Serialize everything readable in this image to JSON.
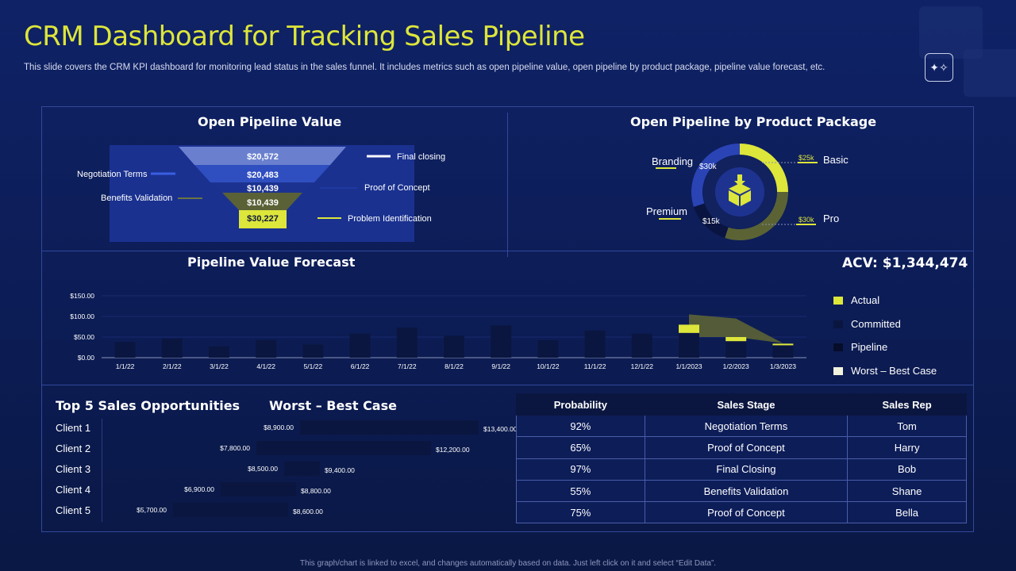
{
  "header": {
    "title": "CRM Dashboard for Tracking Sales Pipeline",
    "subtitle": "This slide covers the CRM KPI dashboard for monitoring lead status in the sales funnel. It includes metrics such as open pipeline value, open pipeline by product package, pipeline value forecast, etc.",
    "sparkle_icon": "sparkle-icon"
  },
  "footer": {
    "note": "This graph/chart is linked to excel, and changes automatically based on data. Just left click on it and select “Edit Data”."
  },
  "colors": {
    "accent": "#dde63a",
    "olive": "#5b6335",
    "navy_dark": "#0b1640",
    "blue_mid": "#2a44b5",
    "blue_light": "#6a80cf"
  },
  "chart_data": [
    {
      "type": "funnel",
      "title": "Open Pipeline Value",
      "stages": [
        {
          "value_label": "$20,572",
          "name": "Final closing"
        },
        {
          "value_label": "$20,483",
          "name": "Negotiation Terms"
        },
        {
          "value_label": "$10,439",
          "name": "Proof of Concept"
        },
        {
          "value_label": "$10,439",
          "name": "Benefits Validation"
        },
        {
          "value_label": "$30,227",
          "name": "Problem Identification"
        }
      ]
    },
    {
      "type": "pie",
      "title": "Open Pipeline by Product Package",
      "center_icon": "box-icon",
      "slices": [
        {
          "name": "Basic",
          "value": 25,
          "value_label": "$25k"
        },
        {
          "name": "Pro",
          "value": 30,
          "value_label": "$30k"
        },
        {
          "name": "Premium",
          "value": 15,
          "value_label": "$15k"
        },
        {
          "name": "Branding",
          "value": 30,
          "value_label": "$30k"
        }
      ]
    },
    {
      "type": "bar",
      "title": "Pipeline Value Forecast",
      "kpi": "ACV: $1,344,474",
      "ylim": [
        0,
        150
      ],
      "yticks": [
        "$150.00",
        "$100.00",
        "$50.00",
        "$0.00"
      ],
      "ytick_values": [
        150,
        100,
        50,
        0
      ],
      "categories": [
        "1/1/22",
        "2/1/22",
        "3/1/22",
        "4/1/22",
        "5/1/22",
        "6/1/22",
        "7/1/22",
        "8/1/22",
        "9/1/22",
        "10/1/22",
        "11/1/22",
        "12/1/22",
        "1/1/2023",
        "1/2/2023",
        "1/3/2023"
      ],
      "series": [
        {
          "name": "Actual",
          "values": [
            0,
            0,
            0,
            0,
            0,
            0,
            0,
            0,
            0,
            0,
            0,
            0,
            20,
            10,
            4
          ]
        },
        {
          "name": "Committed",
          "values": [
            38,
            46,
            28,
            43,
            32,
            58,
            73,
            53,
            78,
            42,
            66,
            58,
            60,
            40,
            30
          ]
        },
        {
          "name": "Pipeline",
          "values": [
            0,
            0,
            0,
            0,
            0,
            0,
            0,
            0,
            0,
            0,
            0,
            0,
            0,
            0,
            0
          ]
        },
        {
          "name": "Worst – Best Case",
          "values": [
            null,
            null,
            null,
            null,
            null,
            null,
            null,
            null,
            null,
            null,
            null,
            null,
            105,
            95,
            35
          ]
        }
      ],
      "worst_case_lower": [
        null,
        null,
        null,
        null,
        null,
        null,
        null,
        null,
        null,
        null,
        null,
        null,
        50,
        50,
        35
      ]
    },
    {
      "type": "bar",
      "orientation": "horizontal",
      "title": "Top 5 Sales Opportunities",
      "range_title": "Worst – Best Case",
      "categories": [
        "Client 1",
        "Client 2",
        "Client 3",
        "Client 4",
        "Client 5"
      ],
      "worst": [
        8900,
        7800,
        8500,
        6900,
        5700
      ],
      "best": [
        13400,
        12200,
        9400,
        8800,
        8600
      ],
      "worst_labels": [
        "$8,900.00",
        "$7,800.00",
        "$8,500.00",
        "$6,900.00",
        "$5,700.00"
      ],
      "best_labels": [
        "$13,400.00",
        "$12,200.00",
        "$9,400.00",
        "$8,800.00",
        "$8,600.00"
      ]
    }
  ],
  "opportunities_table": {
    "headers": [
      "Probability",
      "Sales Stage",
      "Sales Rep"
    ],
    "rows": [
      [
        "92%",
        "Negotiation Terms",
        "Tom"
      ],
      [
        "65%",
        "Proof of Concept",
        "Harry"
      ],
      [
        "97%",
        "Final Closing",
        "Bob"
      ],
      [
        "55%",
        "Benefits Validation",
        "Shane"
      ],
      [
        "75%",
        "Proof of Concept",
        "Bella"
      ]
    ]
  }
}
